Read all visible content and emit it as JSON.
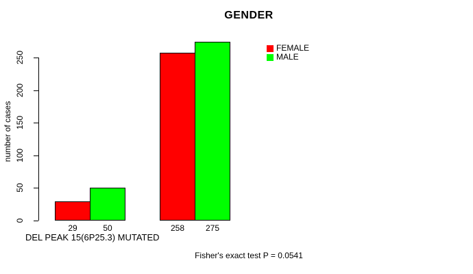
{
  "chart_data": {
    "type": "bar",
    "title": "GENDER",
    "ylabel": "number of cases",
    "xlabel": "DEL PEAK 15(6P25.3) MUTATED",
    "annotation": "Fisher's exact test P = 0.0541",
    "series": [
      {
        "name": "FEMALE",
        "color": "#ff0000",
        "values": [
          29,
          258
        ]
      },
      {
        "name": "MALE",
        "color": "#00ff00",
        "values": [
          50,
          275
        ]
      }
    ],
    "bar_value_labels": [
      [
        "29",
        "50"
      ],
      [
        "258",
        "275"
      ]
    ],
    "yticks": [
      0,
      50,
      100,
      150,
      200,
      250
    ],
    "ylim": [
      0,
      250
    ],
    "grid": false,
    "legend_position": "inside-top-right",
    "axis_color": "#000000",
    "background_color": "#ffffff"
  }
}
